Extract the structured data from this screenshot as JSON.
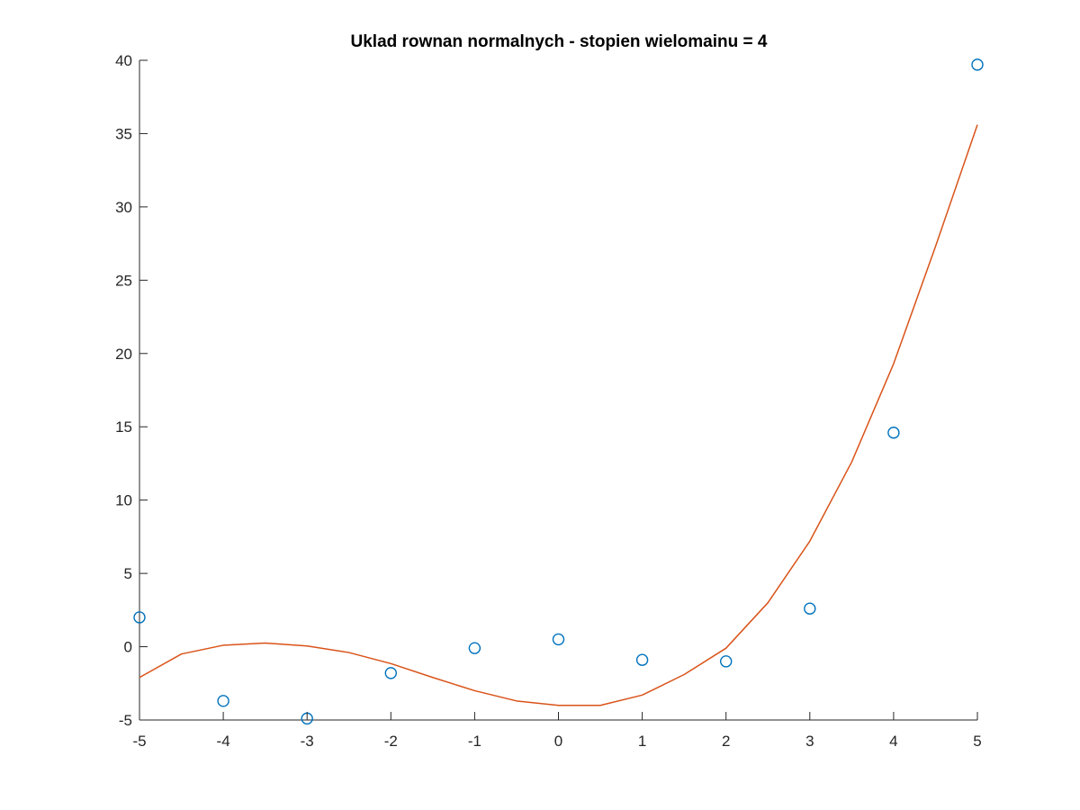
{
  "chart_data": {
    "type": "scatter",
    "title": "Uklad rownan normalnych - stopien wielomainu = 4",
    "xlabel": "",
    "ylabel": "",
    "xlim": [
      -5,
      5
    ],
    "ylim": [
      -5,
      40
    ],
    "grid": false,
    "x_ticks": [
      -5,
      -4,
      -3,
      -2,
      -1,
      0,
      1,
      2,
      3,
      4,
      5
    ],
    "x_tick_labels": [
      "-5",
      "-4",
      "-3",
      "-2",
      "-1",
      "0",
      "1",
      "2",
      "3",
      "4",
      "5"
    ],
    "y_ticks": [
      -5,
      0,
      5,
      10,
      15,
      20,
      25,
      30,
      35,
      40
    ],
    "y_tick_labels": [
      "-5",
      "0",
      "5",
      "10",
      "15",
      "20",
      "25",
      "30",
      "35",
      "40"
    ],
    "series": [
      {
        "kind": "markers",
        "marker": "circle",
        "color": "#0072BD",
        "x": [
          -5,
          -4,
          -3,
          -2,
          -1,
          0,
          1,
          2,
          3,
          4,
          5
        ],
        "y": [
          2.0,
          -3.7,
          -4.9,
          -1.8,
          -0.1,
          0.5,
          -0.9,
          -1.0,
          2.6,
          14.6,
          39.7
        ]
      },
      {
        "kind": "line",
        "color": "#D95319",
        "x": [
          -5,
          -4.5,
          -4,
          -3.5,
          -3,
          -2.5,
          -2,
          -1.5,
          -1,
          -0.5,
          0,
          0.5,
          1,
          1.5,
          2,
          2.5,
          3,
          3.5,
          4,
          4.5,
          5
        ],
        "y": [
          -2.1,
          -0.5,
          0.1,
          0.25,
          0.05,
          -0.4,
          -1.15,
          -2.1,
          -3.0,
          -3.7,
          -4.0,
          -4.0,
          -3.3,
          -1.9,
          -0.1,
          3.0,
          7.2,
          12.6,
          19.3,
          27.3,
          35.6
        ]
      }
    ]
  }
}
